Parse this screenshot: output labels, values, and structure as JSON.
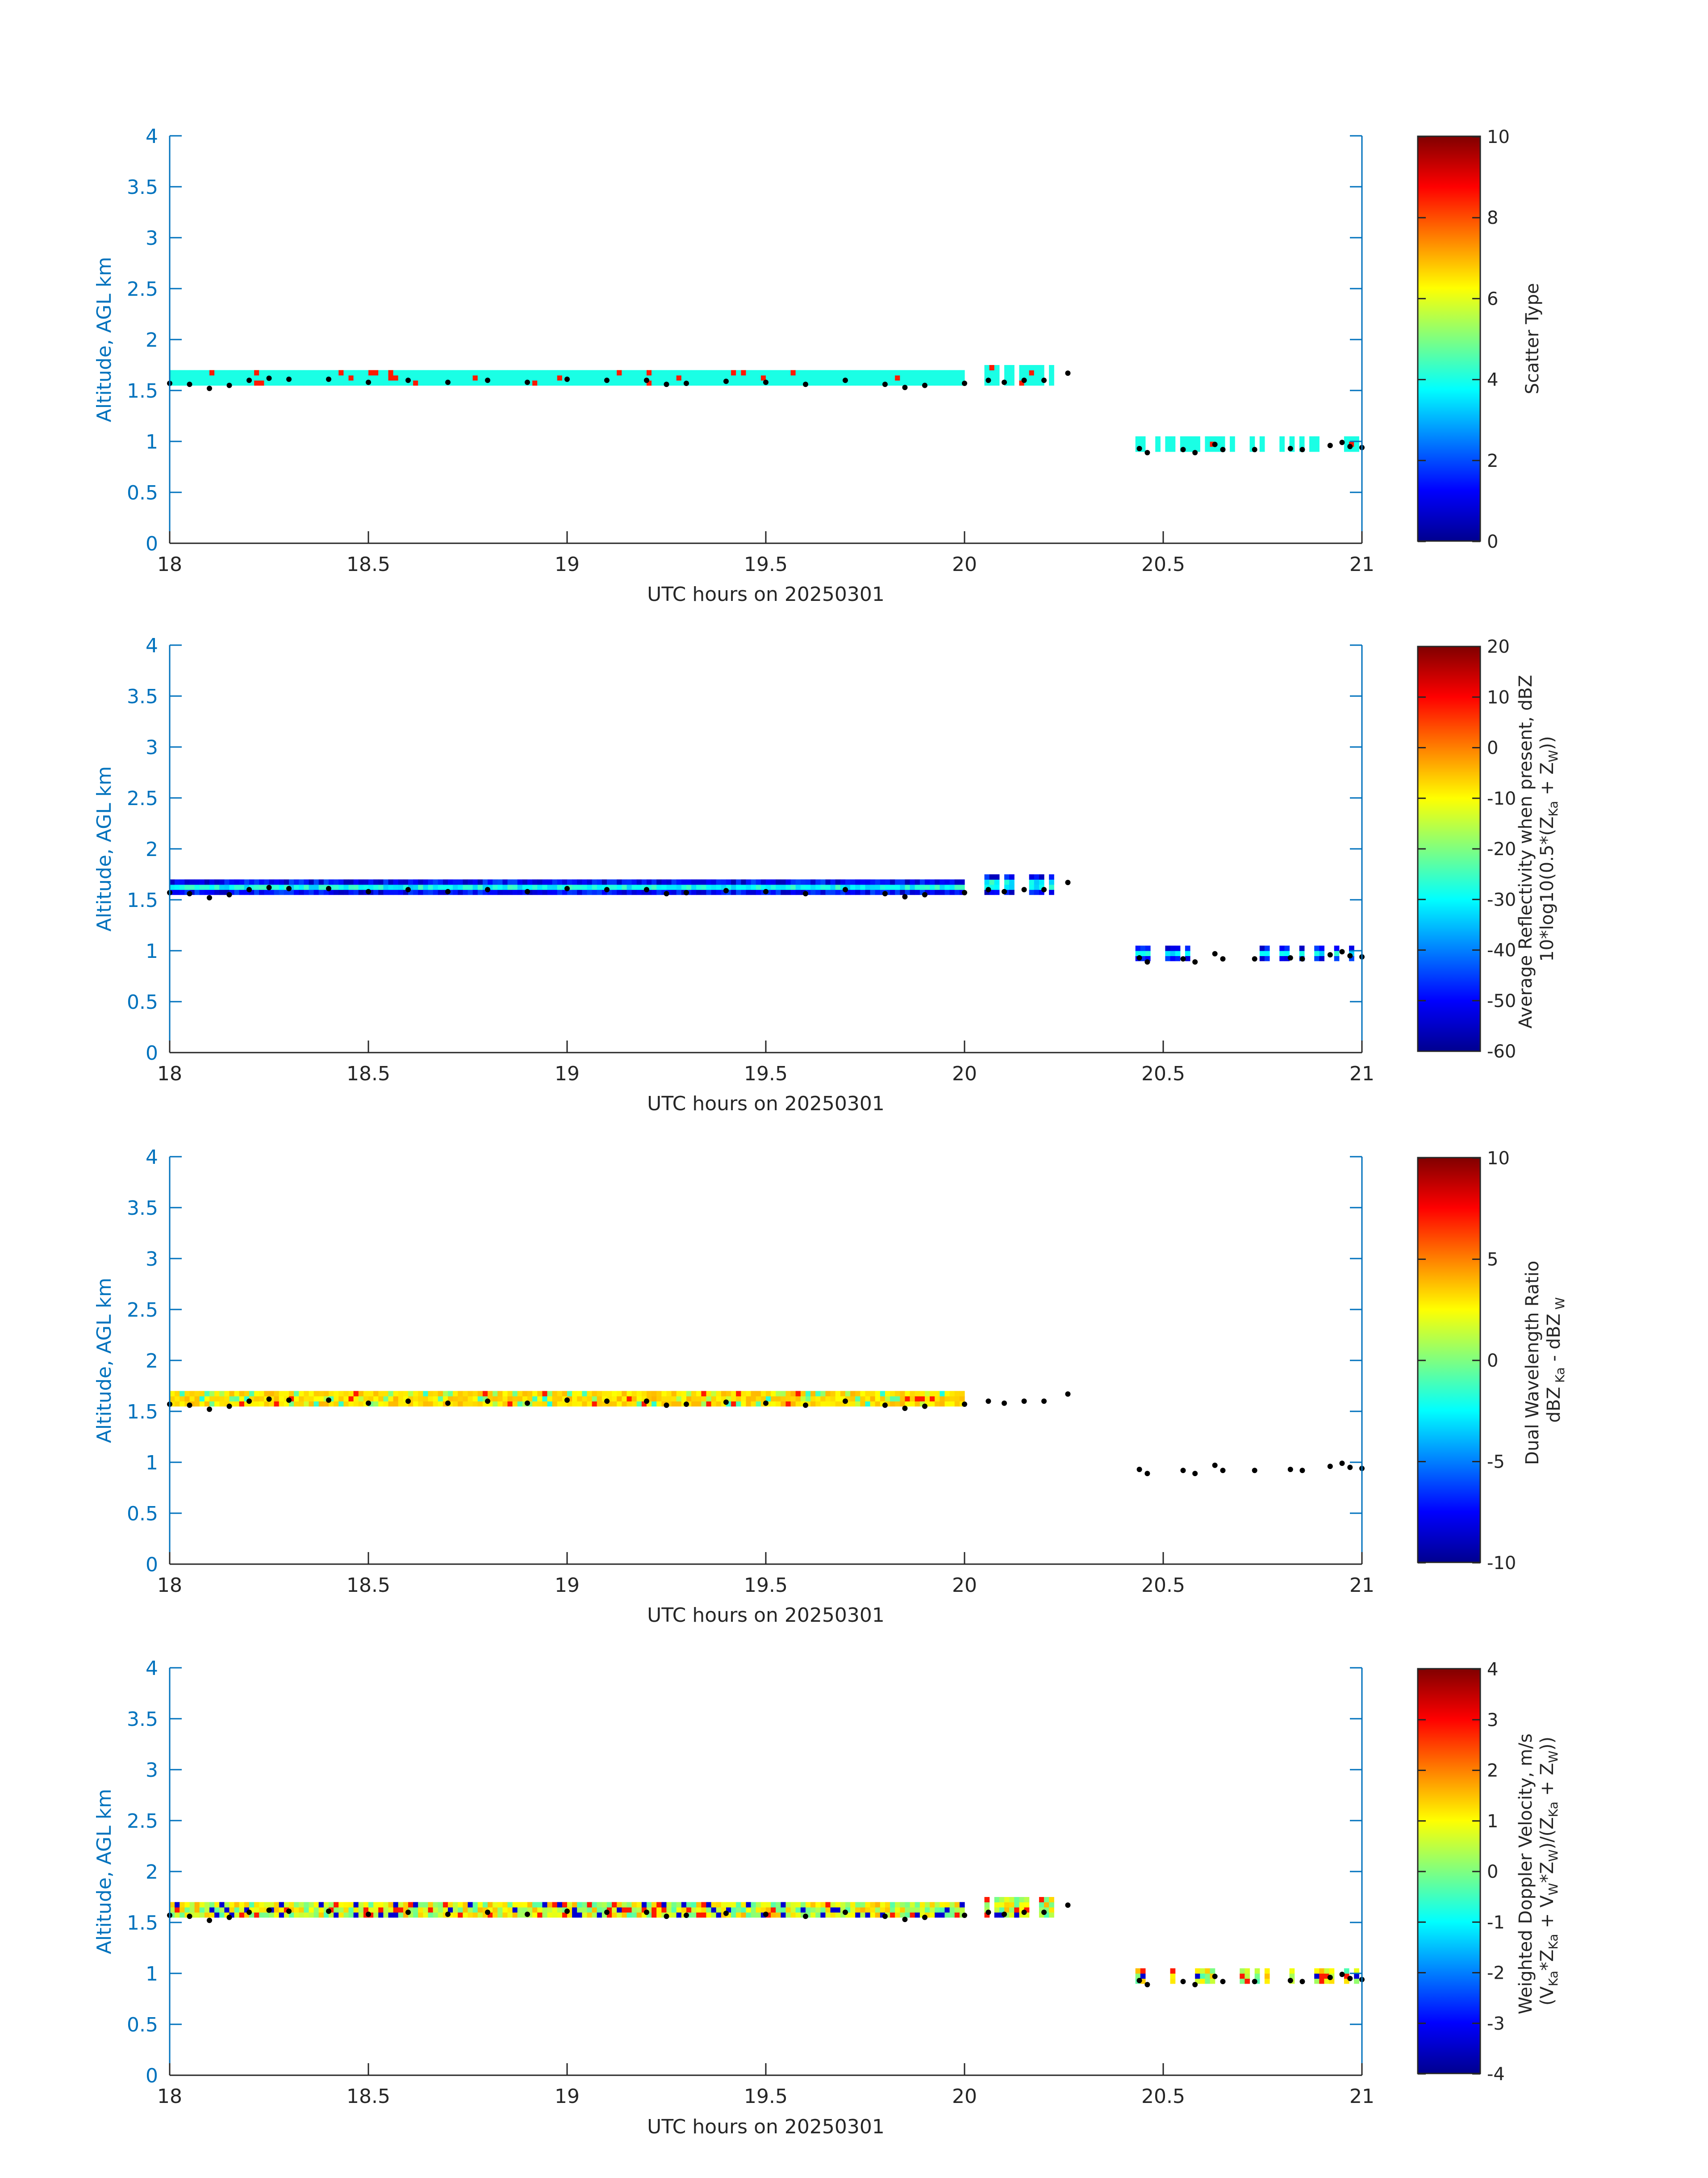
{
  "figure": {
    "xlabel": "UTC hours on 20250301",
    "ylabel": "Altitude, AGL km"
  },
  "colors": {
    "axis_blue": "#0072BD",
    "text_black": "#262626",
    "colormap": "jet",
    "cloud_base_marker": "#000000"
  },
  "chart_data": [
    {
      "type": "heatmap",
      "panel": "scatter_type",
      "xlabel": "UTC hours on 20250301",
      "ylabel": "Altitude, AGL km",
      "xlim": [
        18,
        21
      ],
      "ylim": [
        0,
        4
      ],
      "xticks": [
        "18",
        "18.5",
        "19",
        "19.5",
        "20",
        "20.5",
        "21"
      ],
      "yticks": [
        "0",
        "0.5",
        "1",
        "1.5",
        "2",
        "2.5",
        "3",
        "3.5",
        "4"
      ],
      "colorbar": {
        "label_lines": [
          "Scatter Type"
        ],
        "clim": [
          0,
          10
        ],
        "ticks": [
          "0",
          "2",
          "4",
          "6",
          "8",
          "10"
        ],
        "tick_values": [
          0,
          2,
          4,
          6,
          8,
          10
        ]
      },
      "field": "scatter_type"
    },
    {
      "type": "heatmap",
      "panel": "average_reflectivity",
      "xlabel": "UTC hours on 20250301",
      "ylabel": "Altitude, AGL km",
      "xlim": [
        18,
        21
      ],
      "ylim": [
        0,
        4
      ],
      "xticks": [
        "18",
        "18.5",
        "19",
        "19.5",
        "20",
        "20.5",
        "21"
      ],
      "yticks": [
        "0",
        "0.5",
        "1",
        "1.5",
        "2",
        "2.5",
        "3",
        "3.5",
        "4"
      ],
      "colorbar": {
        "label_lines": [
          "Average Reflectivity when present, dBZ",
          "10*log10(0.5*(Z_{Ka} + Z_{W}))"
        ],
        "clim": [
          -60,
          20
        ],
        "ticks": [
          "-60",
          "-50",
          "-40",
          "-30",
          "-20",
          "-10",
          "0",
          "10",
          "20"
        ],
        "tick_values": [
          -60,
          -50,
          -40,
          -30,
          -20,
          -10,
          0,
          10,
          20
        ]
      },
      "field": "reflectivity"
    },
    {
      "type": "heatmap",
      "panel": "dual_wavelength_ratio",
      "xlabel": "UTC hours on 20250301",
      "ylabel": "Altitude, AGL km",
      "xlim": [
        18,
        21
      ],
      "ylim": [
        0,
        4
      ],
      "xticks": [
        "18",
        "18.5",
        "19",
        "19.5",
        "20",
        "20.5",
        "21"
      ],
      "yticks": [
        "0",
        "0.5",
        "1",
        "1.5",
        "2",
        "2.5",
        "3",
        "3.5",
        "4"
      ],
      "colorbar": {
        "label_lines": [
          "Dual Wavelength Ratio",
          "dBZ_{Ka} - dBZ_{W}"
        ],
        "clim": [
          -10,
          10
        ],
        "ticks": [
          "-10",
          "-5",
          "0",
          "5",
          "10"
        ],
        "tick_values": [
          -10,
          -5,
          0,
          5,
          10
        ]
      },
      "field": "dwr"
    },
    {
      "type": "heatmap",
      "panel": "weighted_doppler_velocity",
      "xlabel": "UTC hours on 20250301",
      "ylabel": "Altitude, AGL km",
      "xlim": [
        18,
        21
      ],
      "ylim": [
        0,
        4
      ],
      "xticks": [
        "18",
        "18.5",
        "19",
        "19.5",
        "20",
        "20.5",
        "21"
      ],
      "yticks": [
        "0",
        "0.5",
        "1",
        "1.5",
        "2",
        "2.5",
        "3",
        "3.5",
        "4"
      ],
      "colorbar": {
        "label_lines": [
          "Weighted Doppler Velocity, m/s",
          "(V_{Ka}*Z_{Ka} + V_{W}*Z_{W})/(Z_{Ka} + Z_{W})"
        ],
        "clim": [
          -4,
          4
        ],
        "ticks": [
          "-4",
          "-3",
          "-2",
          "-1",
          "0",
          "1",
          "2",
          "3",
          "4"
        ],
        "tick_values": [
          -4,
          -3,
          -2,
          -1,
          0,
          1,
          2,
          3,
          4
        ]
      },
      "field": "velocity"
    }
  ],
  "cloud_layer": {
    "segments": [
      {
        "t_start": 18.0,
        "t_end": 20.0,
        "base_km": 1.55,
        "top_km": 1.7
      },
      {
        "t_start": 20.05,
        "t_end": 20.22,
        "base_km": 1.55,
        "top_km": 1.72
      },
      {
        "t_start": 20.43,
        "t_end": 21.0,
        "base_km": 0.9,
        "top_km": 1.05
      }
    ],
    "cloud_base_km": [
      [
        18.0,
        1.57
      ],
      [
        18.05,
        1.56
      ],
      [
        18.1,
        1.52
      ],
      [
        18.15,
        1.55
      ],
      [
        18.2,
        1.6
      ],
      [
        18.25,
        1.62
      ],
      [
        18.3,
        1.61
      ],
      [
        18.4,
        1.61
      ],
      [
        18.5,
        1.58
      ],
      [
        18.6,
        1.6
      ],
      [
        18.7,
        1.58
      ],
      [
        18.8,
        1.6
      ],
      [
        18.9,
        1.58
      ],
      [
        19.0,
        1.61
      ],
      [
        19.1,
        1.6
      ],
      [
        19.2,
        1.6
      ],
      [
        19.25,
        1.56
      ],
      [
        19.3,
        1.57
      ],
      [
        19.4,
        1.59
      ],
      [
        19.5,
        1.58
      ],
      [
        19.6,
        1.56
      ],
      [
        19.7,
        1.6
      ],
      [
        19.8,
        1.56
      ],
      [
        19.85,
        1.53
      ],
      [
        19.9,
        1.55
      ],
      [
        20.0,
        1.57
      ],
      [
        20.06,
        1.6
      ],
      [
        20.1,
        1.58
      ],
      [
        20.15,
        1.6
      ],
      [
        20.2,
        1.6
      ],
      [
        20.26,
        1.67
      ],
      [
        20.44,
        0.93
      ],
      [
        20.46,
        0.89
      ],
      [
        20.55,
        0.92
      ],
      [
        20.58,
        0.89
      ],
      [
        20.63,
        0.97
      ],
      [
        20.65,
        0.92
      ],
      [
        20.73,
        0.92
      ],
      [
        20.82,
        0.93
      ],
      [
        20.85,
        0.92
      ],
      [
        20.92,
        0.96
      ],
      [
        20.95,
        0.99
      ],
      [
        20.97,
        0.95
      ],
      [
        21.0,
        0.94
      ]
    ]
  }
}
